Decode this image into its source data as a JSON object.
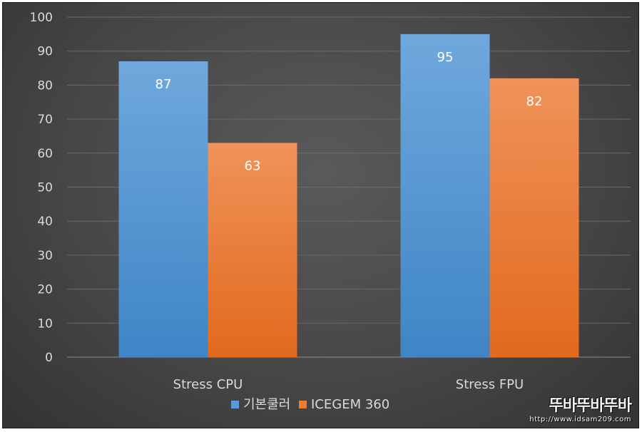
{
  "chart_data": {
    "type": "bar",
    "title": "",
    "xlabel": "",
    "ylabel": "",
    "categories": [
      "Stress CPU",
      "Stress FPU"
    ],
    "series": [
      {
        "name": "기본쿨러",
        "values": [
          87,
          95
        ],
        "color": "#5b9bd5"
      },
      {
        "name": "ICEGEM 360",
        "values": [
          63,
          82
        ],
        "color": "#ed7d31"
      }
    ],
    "ylim": [
      0,
      100
    ],
    "yticks": [
      0,
      10,
      20,
      30,
      40,
      50,
      60,
      70,
      80,
      90,
      100
    ],
    "grid": true,
    "legend": "bottom-center"
  },
  "watermark": {
    "text": "뚜바뚜바뚜바",
    "url": "http://www.idsam209.com"
  }
}
